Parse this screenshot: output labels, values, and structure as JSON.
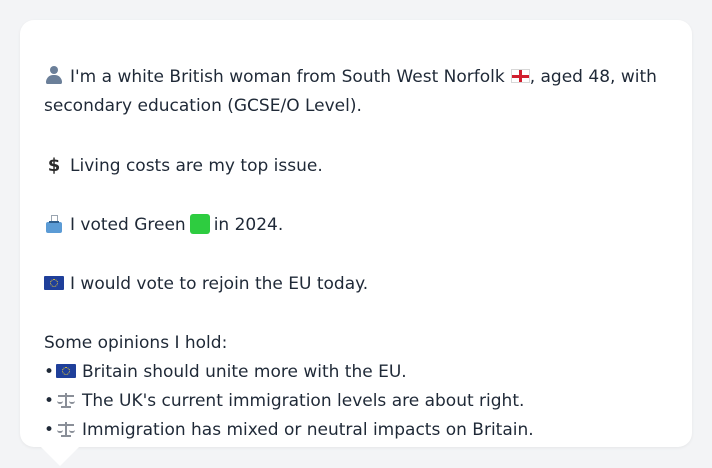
{
  "profile": {
    "intro_text_1": "I'm a white British woman from South West Norfolk",
    "intro_text_2": ", aged 48, with",
    "intro_text_3": "secondary education (GCSE/O Level).",
    "top_issue": "Living costs are my top issue.",
    "vote_2024_prefix": "I voted Green",
    "vote_2024_suffix": "in 2024.",
    "eu_stance": "I would vote to rejoin the EU today.",
    "opinions_header": "Some opinions I hold:",
    "bullet_char": "•",
    "opinions": [
      {
        "icon": "eu-flag-icon",
        "text": "Britain should unite more with the EU."
      },
      {
        "icon": "scales-icon",
        "text": "The UK's current immigration levels are about right."
      },
      {
        "icon": "scales-icon",
        "text": "Immigration has mixed or neutral impacts on Britain."
      }
    ],
    "icons": {
      "intro": "person-icon",
      "region_flag": "england-flag-icon",
      "issue": "dollar-icon",
      "vote": "ballot-box-icon",
      "party_color": "green-square-icon",
      "eu": "eu-flag-icon"
    },
    "colors": {
      "background": "#f3f4f6",
      "bubble": "#ffffff",
      "text": "#1f2937",
      "green_party": "#2ecc40",
      "eu_blue": "#1f3f9a"
    }
  }
}
